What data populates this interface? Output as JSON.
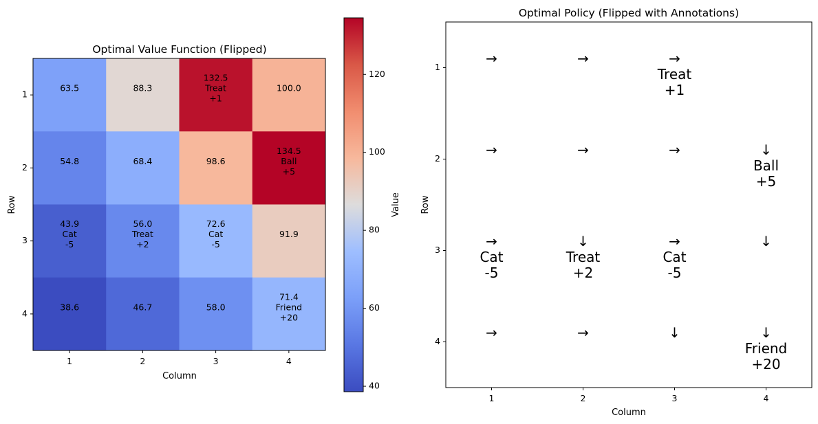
{
  "chart_data": [
    {
      "type": "heatmap",
      "title": "Optimal Value Function (Flipped)",
      "xlabel": "Column",
      "ylabel": "Row",
      "x_ticks": [
        "1",
        "2",
        "3",
        "4"
      ],
      "y_ticks": [
        "1",
        "2",
        "3",
        "4"
      ],
      "colormap": "coolwarm",
      "values": [
        [
          63.5,
          88.3,
          132.5,
          100.0
        ],
        [
          54.8,
          68.4,
          98.6,
          134.5
        ],
        [
          43.9,
          56.0,
          72.6,
          91.9
        ],
        [
          38.6,
          46.7,
          58.0,
          71.4
        ]
      ],
      "cell_labels": [
        [
          "63.5",
          "88.3",
          "132.5\nTreat\n+1",
          "100.0"
        ],
        [
          "54.8",
          "68.4",
          "98.6",
          "134.5\nBall\n+5"
        ],
        [
          "43.9\nCat\n-5",
          "56.0\nTreat\n+2",
          "72.6\nCat\n-5",
          "91.9"
        ],
        [
          "38.6",
          "46.7",
          "58.0",
          "71.4\nFriend\n+20"
        ]
      ],
      "colorbar": {
        "label": "Value",
        "range": [
          38.6,
          134.5
        ],
        "ticks": [
          "40",
          "60",
          "80",
          "100",
          "120"
        ],
        "tick_values": [
          40,
          60,
          80,
          100,
          120
        ]
      }
    },
    {
      "type": "table",
      "title": "Optimal Policy (Flipped with Annotations)",
      "xlabel": "Column",
      "ylabel": "Row",
      "x_ticks": [
        "1",
        "2",
        "3",
        "4"
      ],
      "y_ticks": [
        "1",
        "2",
        "3",
        "4"
      ],
      "cells": [
        [
          "→",
          "→",
          "→\nTreat\n+1",
          ""
        ],
        [
          "→",
          "→",
          "→",
          "↓\nBall\n+5"
        ],
        [
          "→\nCat\n-5",
          "↓\nTreat\n+2",
          "→\nCat\n-5",
          "↓"
        ],
        [
          "→",
          "→",
          "↓",
          "↓\nFriend\n+20"
        ]
      ]
    }
  ]
}
